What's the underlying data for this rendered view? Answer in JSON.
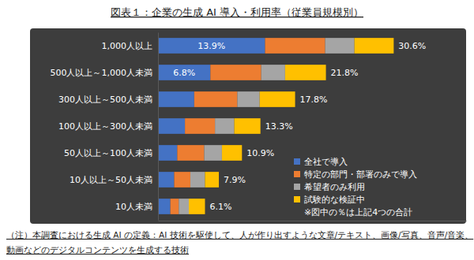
{
  "chart_data": {
    "type": "bar",
    "orientation": "horizontal",
    "stacked": true,
    "title": "図表１：企業の生成 AI 導入・利用率（従業員規模別）",
    "categories": [
      "1,000人以上",
      "500人以上～1,000人未満",
      "300人以上～500人未満",
      "100人以上～300人未満",
      "50人以上～100人未満",
      "10人以上～50人未満",
      "10人未満"
    ],
    "series": [
      {
        "name": "全社で導入",
        "color": "#4472c4",
        "values": [
          13.9,
          6.8,
          4.7,
          3.5,
          2.5,
          2.1,
          1.6
        ],
        "value_labels": [
          "13.9%",
          "6.8%",
          null,
          null,
          null,
          null,
          null
        ]
      },
      {
        "name": "特定の部門・部署のみで導入",
        "color": "#ed7d31",
        "values": [
          7.8,
          6.6,
          5.6,
          3.9,
          3.5,
          2.1,
          1.1
        ]
      },
      {
        "name": "希望者のみ利用",
        "color": "#a5a5a5",
        "values": [
          3.8,
          3.1,
          2.9,
          2.5,
          2.3,
          1.9,
          1.3
        ]
      },
      {
        "name": "試験的な検証中",
        "color": "#ffc000",
        "values": [
          5.1,
          5.3,
          4.6,
          3.4,
          2.6,
          1.8,
          2.1
        ]
      }
    ],
    "data_labels": true,
    "totals": [
      30.6,
      21.8,
      17.8,
      13.3,
      10.9,
      7.9,
      6.1
    ],
    "total_labels": [
      "30.6%",
      "21.8%",
      "17.8%",
      "13.3%",
      "10.9%",
      "7.9%",
      "6.1%"
    ],
    "xlim": [
      0,
      40
    ],
    "tick_labels": "y",
    "legend": "lower right",
    "legend_note": "※図中の％は上記4つの合計",
    "footnote": [
      "（注）本調査における生成 AI の定義：AI 技術を駆使して、人が作り出すような文章/テキスト、画像/写真、音声/音楽、",
      "動画などのデジタルコンテンツを生成する技術"
    ]
  }
}
